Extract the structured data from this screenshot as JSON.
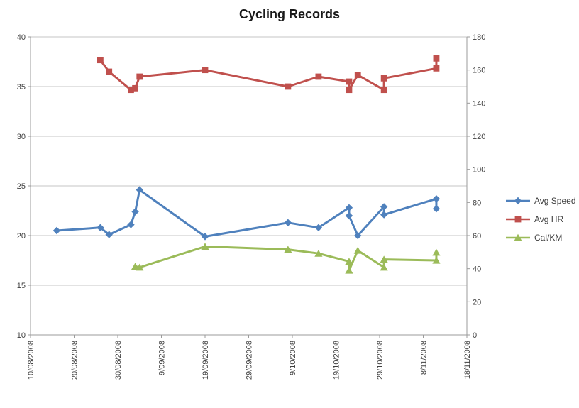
{
  "chart_data": {
    "type": "line",
    "title": "Cycling Records",
    "legend_position": "right",
    "grid": "horizontal",
    "left_axis": {
      "min": 10,
      "max": 40,
      "step": 5,
      "tick_labels": [
        "40",
        "35",
        "30",
        "25",
        "20",
        "15",
        "10"
      ]
    },
    "right_axis": {
      "min": 0,
      "max": 180,
      "step": 20,
      "tick_labels": [
        "180",
        "160",
        "140",
        "120",
        "100",
        "80",
        "60",
        "40",
        "20",
        "0"
      ]
    },
    "x_axis": {
      "tick_labels": [
        "10/08/2008",
        "20/08/2008",
        "30/08/2008",
        "9/09/2008",
        "19/09/2008",
        "29/09/2008",
        "9/10/2008",
        "19/10/2008",
        "29/10/2008",
        "8/11/2008",
        "18/11/2008"
      ],
      "tick_days": [
        0,
        10,
        20,
        30,
        40,
        50,
        60,
        70,
        80,
        90,
        100
      ],
      "range_days": [
        0,
        100
      ]
    },
    "x_dates": [
      "16/08/2008",
      "26/08/2008",
      "28/08/2008",
      "2/09/2008",
      "3/09/2008",
      "4/09/2008",
      "19/09/2008",
      "8/10/2008",
      "15/10/2008",
      "22/10/2008",
      "22/10/2008",
      "24/10/2008",
      "30/10/2008",
      "30/10/2008",
      "11/11/2008",
      "11/11/2008"
    ],
    "x_days": [
      6,
      16,
      18,
      23,
      24,
      25,
      40,
      59,
      66,
      73,
      73,
      75,
      81,
      81,
      93,
      93
    ],
    "series": [
      {
        "name": "Avg Speed",
        "color": "#4F81BD",
        "marker": "diamond",
        "axis": "left",
        "values": [
          20.5,
          20.8,
          20.1,
          21.1,
          22.4,
          24.6,
          19.9,
          21.3,
          20.8,
          22.8,
          22.0,
          20.0,
          22.9,
          22.1,
          23.7,
          22.7
        ]
      },
      {
        "name": "Avg HR",
        "color": "#C0504D",
        "marker": "square",
        "axis": "right",
        "values": [
          null,
          166,
          159,
          148,
          149,
          156,
          160,
          150,
          156,
          153,
          148,
          157,
          148,
          155,
          161,
          167
        ]
      },
      {
        "name": "Cal/KM",
        "color": "#9BBB59",
        "marker": "triangle",
        "axis": "left",
        "values": [
          null,
          null,
          null,
          null,
          16.9,
          16.8,
          18.9,
          18.6,
          18.2,
          17.4,
          16.5,
          18.5,
          16.8,
          17.6,
          17.5,
          18.3
        ]
      }
    ],
    "colors": {
      "gridline": "#C6C6C6",
      "axis": "#9B9B9B",
      "tick_text": "#3F3F3F",
      "title_text": "#1A1A1A",
      "background": "#FFFFFF"
    }
  }
}
